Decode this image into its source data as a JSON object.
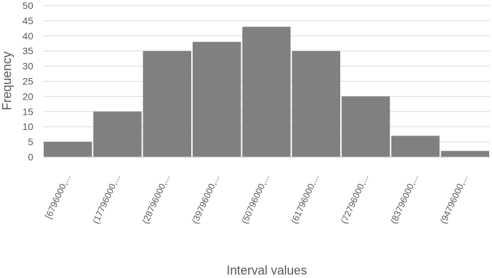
{
  "chart_data": {
    "type": "bar",
    "xlabel": "Interval values",
    "ylabel": "Frequency",
    "ylim": [
      0,
      50
    ],
    "yticks": [
      0,
      5,
      10,
      15,
      20,
      25,
      30,
      35,
      40,
      45,
      50
    ],
    "grid": true,
    "categories": [
      "[6796000,...",
      "(17796000,...",
      "(28796000,...",
      "(39796000,...",
      "(50796000,...",
      "(61796000,...",
      "(72796000,...",
      "(83796000,...",
      "(94796000,..."
    ],
    "values": [
      5,
      15,
      35,
      38,
      43,
      35,
      20,
      7,
      2
    ],
    "colors": {
      "bar": "#808080",
      "grid": "#d9d9d9",
      "axis": "#bfbfbf",
      "text": "#595959"
    }
  }
}
